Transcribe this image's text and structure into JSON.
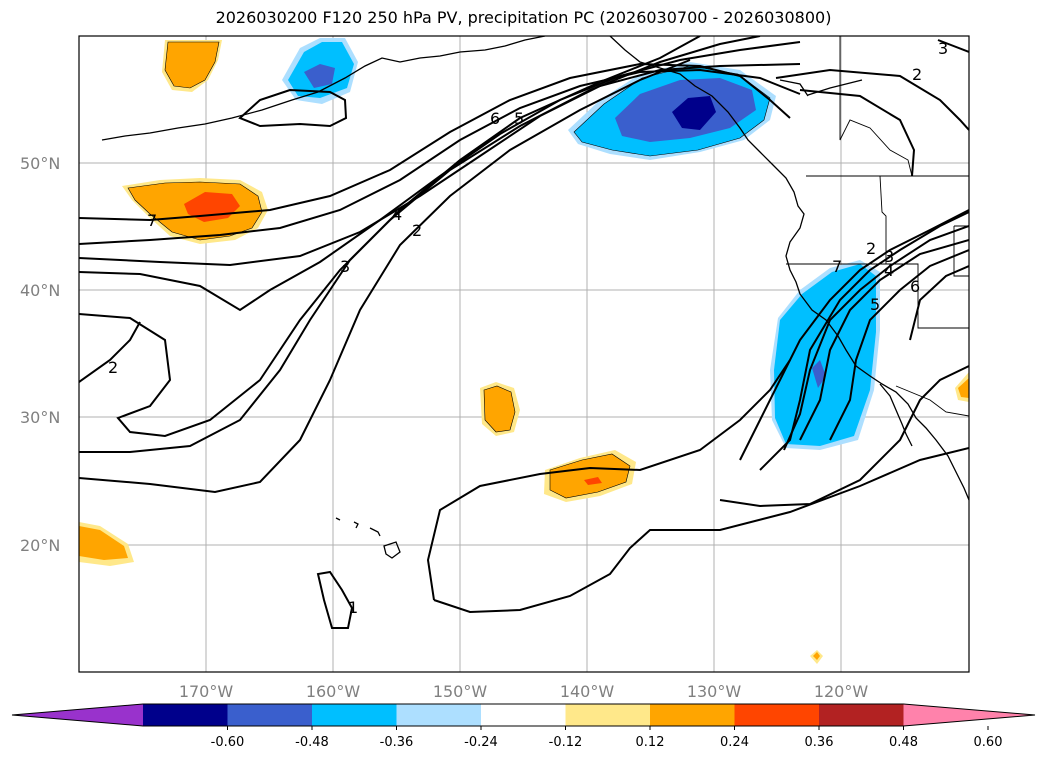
{
  "title": "2026030200 F120 250 hPa PV, precipitation PC (2026030700 - 2026030800)",
  "map": {
    "projection": "PlateCarree",
    "lon_range": [
      -180,
      -110
    ],
    "lat_range": [
      10,
      60
    ],
    "lat_labels": [
      "50°N",
      "40°N",
      "30°N",
      "20°N"
    ],
    "lon_labels": [
      "170°W",
      "160°W",
      "150°W",
      "140°W",
      "130°W",
      "120°W"
    ],
    "contour_labels": [
      "2",
      "7",
      "4",
      "2",
      "3",
      "6",
      "5",
      "3",
      "2",
      "3",
      "4",
      "5",
      "6",
      "7",
      "2",
      "1"
    ],
    "colors": {
      "grid": "#b0b0b0",
      "contour": "#000000",
      "coast": "#000000"
    }
  },
  "colorbar": {
    "ticks": [
      "-0.60",
      "-0.48",
      "-0.36",
      "-0.24",
      "-0.12",
      "0.12",
      "0.24",
      "0.36",
      "0.48",
      "0.60"
    ],
    "colors": [
      "#9932CC",
      "#00008B",
      "#3A5FCD",
      "#00BFFF",
      "#ADDFFF",
      "#FFFFFF",
      "#FFE88A",
      "#FFA500",
      "#FF4500",
      "#B22222",
      "#FF82AB"
    ]
  },
  "chart_data": {
    "type": "map",
    "title": "2026030200 F120 250 hPa PV, precipitation PC (2026030700 - 2026030800)",
    "fields": [
      "250 hPa PV contours",
      "precipitation principal component shading"
    ],
    "levels": [
      -0.6,
      -0.48,
      -0.36,
      -0.24,
      -0.12,
      0.12,
      0.24,
      0.36,
      0.48,
      0.6
    ]
  }
}
